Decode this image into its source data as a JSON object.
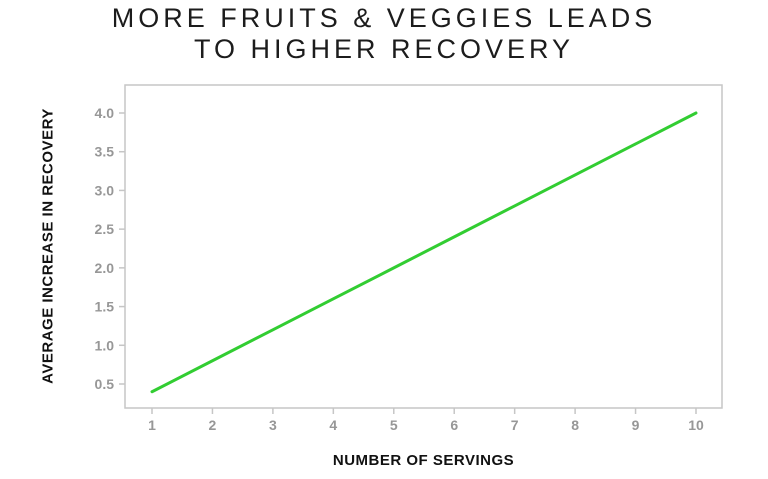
{
  "title": {
    "line1": "MORE FRUITS & VEGGIES LEADS",
    "line2": "TO HIGHER RECOVERY"
  },
  "chart_data": {
    "type": "line",
    "title": "MORE FRUITS & VEGGIES LEADS TO HIGHER RECOVERY",
    "xlabel": "NUMBER OF SERVINGS",
    "ylabel": "AVERAGE INCREASE IN RECOVERY",
    "x": [
      1,
      2,
      3,
      4,
      5,
      6,
      7,
      8,
      9,
      10
    ],
    "series": [
      {
        "name": "Average increase in recovery",
        "values": [
          0.4,
          0.8,
          1.2,
          1.6,
          2.0,
          2.4,
          2.8,
          3.2,
          3.6,
          4.0
        ]
      }
    ],
    "x_ticks": [
      1,
      2,
      3,
      4,
      5,
      6,
      7,
      8,
      9,
      10
    ],
    "x_tick_labels": [
      "1",
      "2",
      "3",
      "4",
      "5",
      "6",
      "7",
      "8",
      "9",
      "10"
    ],
    "y_ticks": [
      0.5,
      1.0,
      1.5,
      2.0,
      2.5,
      3.0,
      3.5,
      4.0
    ],
    "y_tick_labels": [
      "0.5",
      "1.0",
      "1.5",
      "2.0",
      "2.5",
      "3.0",
      "3.5",
      "4.0"
    ],
    "xlim": [
      1,
      10
    ],
    "ylim_ticks": [
      0.5,
      4.0
    ],
    "grid": false,
    "legend": "none",
    "colors": {
      "line": "#32cd32",
      "axis_border": "#c6c6c6",
      "tick_mark": "#c6c6c6",
      "tick_text": "#979797",
      "title_text": "#1c1c1c",
      "axis_label_text": "#111111",
      "background": "#ffffff"
    }
  }
}
